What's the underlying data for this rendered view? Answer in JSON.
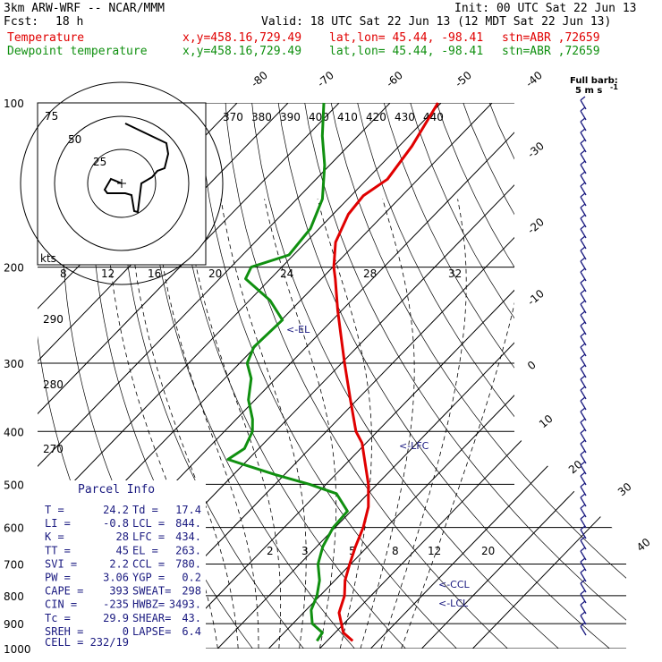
{
  "header": {
    "model": "3km ARW-WRF -- NCAR/MMM",
    "init": "Init: 00 UTC Sat 22 Jun 13",
    "fcst_label": "Fcst:",
    "fcst_value": "18 h",
    "valid": "Valid: 18 UTC Sat 22 Jun 13 (12 MDT Sat 22 Jun 13)",
    "temp_label": "Temperature",
    "dew_label": "Dewpoint temperature",
    "xy": "x,y=458.16,729.49",
    "latlon": "lat,lon= 45.44, -98.41",
    "stn": "stn=ABR ,72659"
  },
  "colors": {
    "temperature": "#e00000",
    "dewpoint": "#109010",
    "labels": "#1a1a80",
    "barbs": "#1a1a80"
  },
  "barb_legend": {
    "line1": "Full barb:",
    "line2": "5 m s",
    "exp": "-1"
  },
  "hodo_label": "kts",
  "hodo_rings": [
    "75",
    "50",
    "25"
  ],
  "theta_labels": [
    "370",
    "380",
    "390",
    "400",
    "410",
    "420",
    "430",
    "440"
  ],
  "theta_labels_low": [
    "290",
    "280",
    "270"
  ],
  "mixing_labels": [
    "2",
    "3",
    "5",
    "8",
    "12",
    "20"
  ],
  "hodo_speed_ticks": [
    "8",
    "12",
    "16",
    "20",
    "24",
    "28",
    "32"
  ],
  "parcel": {
    "title": "Parcel Info",
    "rows": [
      [
        "T   =",
        "24.2",
        "Td =",
        "17.4"
      ],
      [
        "LI  =",
        "-0.8",
        "LCL =",
        "844."
      ],
      [
        "K   =",
        "28",
        "LFC =",
        "434."
      ],
      [
        "TT  =",
        "45",
        "EL  =",
        "263."
      ],
      [
        "SVI =",
        "2.2",
        "CCL =",
        "780."
      ],
      [
        "PW  =",
        "3.06",
        "YGP =",
        "0.2"
      ],
      [
        "CAPE =",
        "393",
        "SWEAT=",
        "298"
      ],
      [
        "CIN =",
        "-235",
        "HWBZ=",
        "3493."
      ],
      [
        "Tc  =",
        "29.9",
        "SHEAR=",
        "43."
      ],
      [
        "SREH =",
        "0",
        "LAPSE=",
        "6.4"
      ]
    ],
    "cell": "CELL = 232/19"
  },
  "level_labels": {
    "el": "<-EL",
    "lfc": "<-LFC",
    "ccl": "<-CCL",
    "lcl": "<-LCL"
  },
  "chart_data": {
    "type": "line",
    "title": "",
    "pressure_ticks": [
      100,
      200,
      300,
      400,
      500,
      600,
      700,
      800,
      900,
      1000
    ],
    "isotherm_labels": [
      -80,
      -70,
      -60,
      -50,
      -40,
      -30,
      -20,
      -10,
      0,
      10,
      20,
      30,
      40
    ],
    "ylim": [
      1000,
      100
    ],
    "series": [
      {
        "name": "Temperature",
        "points": [
          [
            968,
            25.0
          ],
          [
            935,
            21.6
          ],
          [
            900,
            19.5
          ],
          [
            860,
            17.0
          ],
          [
            800,
            14.8
          ],
          [
            750,
            12.0
          ],
          [
            700,
            9.8
          ],
          [
            650,
            7.6
          ],
          [
            600,
            5.5
          ],
          [
            550,
            2.6
          ],
          [
            500,
            -1.7
          ],
          [
            450,
            -7.2
          ],
          [
            420,
            -10.8
          ],
          [
            400,
            -14.2
          ],
          [
            350,
            -21.3
          ],
          [
            300,
            -29.4
          ],
          [
            270,
            -34.8
          ],
          [
            240,
            -40.8
          ],
          [
            210,
            -47.3
          ],
          [
            200,
            -49.8
          ],
          [
            180,
            -54.2
          ],
          [
            160,
            -57.0
          ],
          [
            148,
            -57.6
          ],
          [
            138,
            -56.0
          ],
          [
            120,
            -57.5
          ],
          [
            100,
            -60.6
          ]
        ]
      },
      {
        "name": "Dewpoint temperature",
        "points": [
          [
            968,
            18.0
          ],
          [
            935,
            17.5
          ],
          [
            900,
            13.8
          ],
          [
            850,
            11.0
          ],
          [
            800,
            9.4
          ],
          [
            750,
            7.0
          ],
          [
            700,
            3.6
          ],
          [
            650,
            1.2
          ],
          [
            600,
            -0.4
          ],
          [
            560,
            -0.7
          ],
          [
            520,
            -6.2
          ],
          [
            500,
            -13.2
          ],
          [
            480,
            -21.8
          ],
          [
            460,
            -29.9
          ],
          [
            450,
            -34.0
          ],
          [
            430,
            -32.8
          ],
          [
            400,
            -34.5
          ],
          [
            380,
            -36.8
          ],
          [
            350,
            -41.3
          ],
          [
            320,
            -44.8
          ],
          [
            300,
            -48.5
          ],
          [
            280,
            -50.3
          ],
          [
            250,
            -49.8
          ],
          [
            230,
            -56.0
          ],
          [
            210,
            -64.9
          ],
          [
            200,
            -66.0
          ],
          [
            190,
            -60.9
          ],
          [
            170,
            -61.7
          ],
          [
            150,
            -65.0
          ],
          [
            130,
            -71.0
          ],
          [
            115,
            -77.0
          ],
          [
            100,
            -83.0
          ]
        ]
      }
    ]
  }
}
